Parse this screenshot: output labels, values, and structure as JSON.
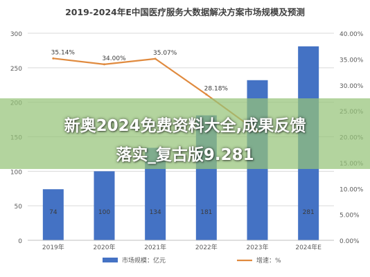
{
  "banner": {
    "line1": "新奥2024免费资料大全,成果反馈",
    "line2": "落实_复古版9.281"
  },
  "colors": {
    "bar": "#4472c4",
    "line": "#e08a3e",
    "grid": "#d9d9d9",
    "axis_text": "#595959",
    "banner": "#8fc26a"
  },
  "chart_data": {
    "type": "bar",
    "title": "2019-2024年E中国医疗服务大数据解决方案市场规模及预测",
    "categories": [
      "2019年",
      "2020年",
      "2021年",
      "2022年",
      "2023年",
      "2024年E"
    ],
    "ylim": [
      0,
      300
    ],
    "yticks": [
      "0",
      "50",
      "100",
      "150",
      "200",
      "250",
      "300"
    ],
    "y2lim": [
      0,
      40
    ],
    "y2ticks": [
      "0.00%",
      "5.00%",
      "10.00%",
      "15.00%",
      "20.00%",
      "25.00%",
      "30.00%",
      "35.00%",
      "40.00%"
    ],
    "grid": true,
    "legend_position": "bottom",
    "series": [
      {
        "name": "市场规模：亿元",
        "type": "bar",
        "axis": "left",
        "values": [
          74,
          100,
          134,
          181,
          232,
          281
        ],
        "labels": [
          "74",
          "100",
          "134",
          "181",
          "",
          "281"
        ]
      },
      {
        "name": "增速：%",
        "type": "line",
        "axis": "right",
        "values": [
          35.14,
          34.0,
          35.07,
          28.18,
          21.0,
          null
        ],
        "labels": [
          "35.14%",
          "34.00%",
          "35.07%",
          "28.18%",
          "",
          ""
        ]
      }
    ]
  }
}
